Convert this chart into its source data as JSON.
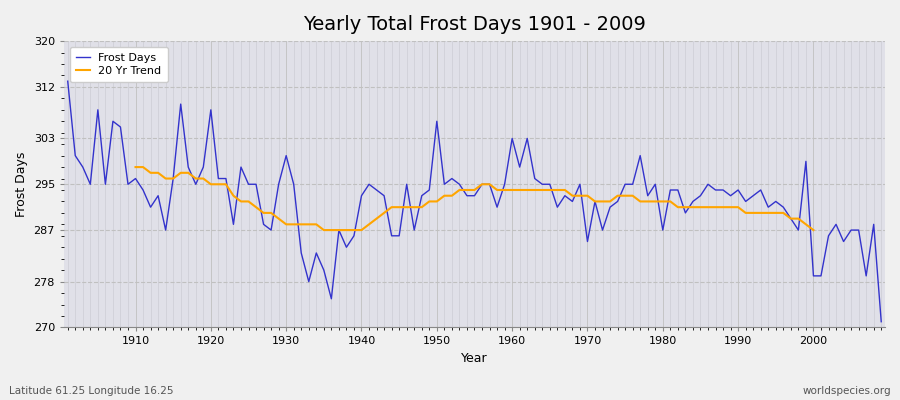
{
  "title": "Yearly Total Frost Days 1901 - 2009",
  "xlabel": "Year",
  "ylabel": "Frost Days",
  "subtitle": "Latitude 61.25 Longitude 16.25",
  "watermark": "worldspecies.org",
  "years": [
    1901,
    1902,
    1903,
    1904,
    1905,
    1906,
    1907,
    1908,
    1909,
    1910,
    1911,
    1912,
    1913,
    1914,
    1915,
    1916,
    1917,
    1918,
    1919,
    1920,
    1921,
    1922,
    1923,
    1924,
    1925,
    1926,
    1927,
    1928,
    1929,
    1930,
    1931,
    1932,
    1933,
    1934,
    1935,
    1936,
    1937,
    1938,
    1939,
    1940,
    1941,
    1942,
    1943,
    1944,
    1945,
    1946,
    1947,
    1948,
    1949,
    1950,
    1951,
    1952,
    1953,
    1954,
    1955,
    1956,
    1957,
    1958,
    1959,
    1960,
    1961,
    1962,
    1963,
    1964,
    1965,
    1966,
    1967,
    1968,
    1969,
    1970,
    1971,
    1972,
    1973,
    1974,
    1975,
    1976,
    1977,
    1978,
    1979,
    1980,
    1981,
    1982,
    1983,
    1984,
    1985,
    1986,
    1987,
    1988,
    1989,
    1990,
    1991,
    1992,
    1993,
    1994,
    1995,
    1996,
    1997,
    1998,
    1999,
    2000,
    2001,
    2002,
    2003,
    2004,
    2005,
    2006,
    2007,
    2008,
    2009
  ],
  "frost_days": [
    313,
    300,
    298,
    295,
    308,
    295,
    306,
    305,
    295,
    296,
    294,
    291,
    293,
    287,
    296,
    309,
    298,
    295,
    298,
    308,
    296,
    296,
    288,
    298,
    295,
    295,
    288,
    287,
    295,
    300,
    295,
    283,
    278,
    283,
    280,
    275,
    287,
    284,
    286,
    293,
    295,
    294,
    293,
    286,
    286,
    295,
    287,
    293,
    294,
    306,
    295,
    296,
    295,
    293,
    293,
    295,
    295,
    291,
    295,
    303,
    298,
    303,
    296,
    295,
    295,
    291,
    293,
    292,
    295,
    285,
    292,
    287,
    291,
    292,
    295,
    295,
    300,
    293,
    295,
    287,
    294,
    294,
    290,
    292,
    293,
    295,
    294,
    294,
    293,
    294,
    292,
    293,
    294,
    291,
    292,
    291,
    289,
    287,
    299,
    279,
    279,
    286,
    288,
    285,
    287,
    287,
    279,
    288,
    271
  ],
  "trend_years": [
    1910,
    1911,
    1912,
    1913,
    1914,
    1915,
    1916,
    1917,
    1918,
    1919,
    1920,
    1921,
    1922,
    1923,
    1924,
    1925,
    1926,
    1927,
    1928,
    1929,
    1930,
    1931,
    1932,
    1933,
    1934,
    1935,
    1936,
    1937,
    1938,
    1939,
    1940,
    1941,
    1942,
    1943,
    1944,
    1945,
    1946,
    1947,
    1948,
    1949,
    1950,
    1951,
    1952,
    1953,
    1954,
    1955,
    1956,
    1957,
    1958,
    1959,
    1960,
    1961,
    1962,
    1963,
    1964,
    1965,
    1966,
    1967,
    1968,
    1969,
    1970,
    1971,
    1972,
    1973,
    1974,
    1975,
    1976,
    1977,
    1978,
    1979,
    1980,
    1981,
    1982,
    1983,
    1984,
    1985,
    1986,
    1987,
    1988,
    1989,
    1990,
    1991,
    1992,
    1993,
    1994,
    1995,
    1996,
    1997,
    1998,
    1999,
    2000
  ],
  "trend_values": [
    298,
    298,
    297,
    297,
    296,
    296,
    297,
    297,
    296,
    296,
    295,
    295,
    295,
    293,
    292,
    292,
    291,
    290,
    290,
    289,
    288,
    288,
    288,
    288,
    288,
    287,
    287,
    287,
    287,
    287,
    287,
    288,
    289,
    290,
    291,
    291,
    291,
    291,
    291,
    292,
    292,
    293,
    293,
    294,
    294,
    294,
    295,
    295,
    294,
    294,
    294,
    294,
    294,
    294,
    294,
    294,
    294,
    294,
    293,
    293,
    293,
    292,
    292,
    292,
    293,
    293,
    293,
    292,
    292,
    292,
    292,
    292,
    291,
    291,
    291,
    291,
    291,
    291,
    291,
    291,
    291,
    290,
    290,
    290,
    290,
    290,
    290,
    289,
    289,
    288,
    287
  ],
  "frost_color": "#3333cc",
  "trend_color": "#ffa500",
  "outer_bg_color": "#f0f0f0",
  "plot_bg_color": "#e0e0e8",
  "ylim": [
    270,
    320
  ],
  "yticks": [
    270,
    278,
    287,
    295,
    303,
    312,
    320
  ],
  "xticks": [
    1910,
    1920,
    1930,
    1940,
    1950,
    1960,
    1970,
    1980,
    1990,
    2000
  ],
  "title_fontsize": 14,
  "label_fontsize": 9,
  "tick_fontsize": 8
}
